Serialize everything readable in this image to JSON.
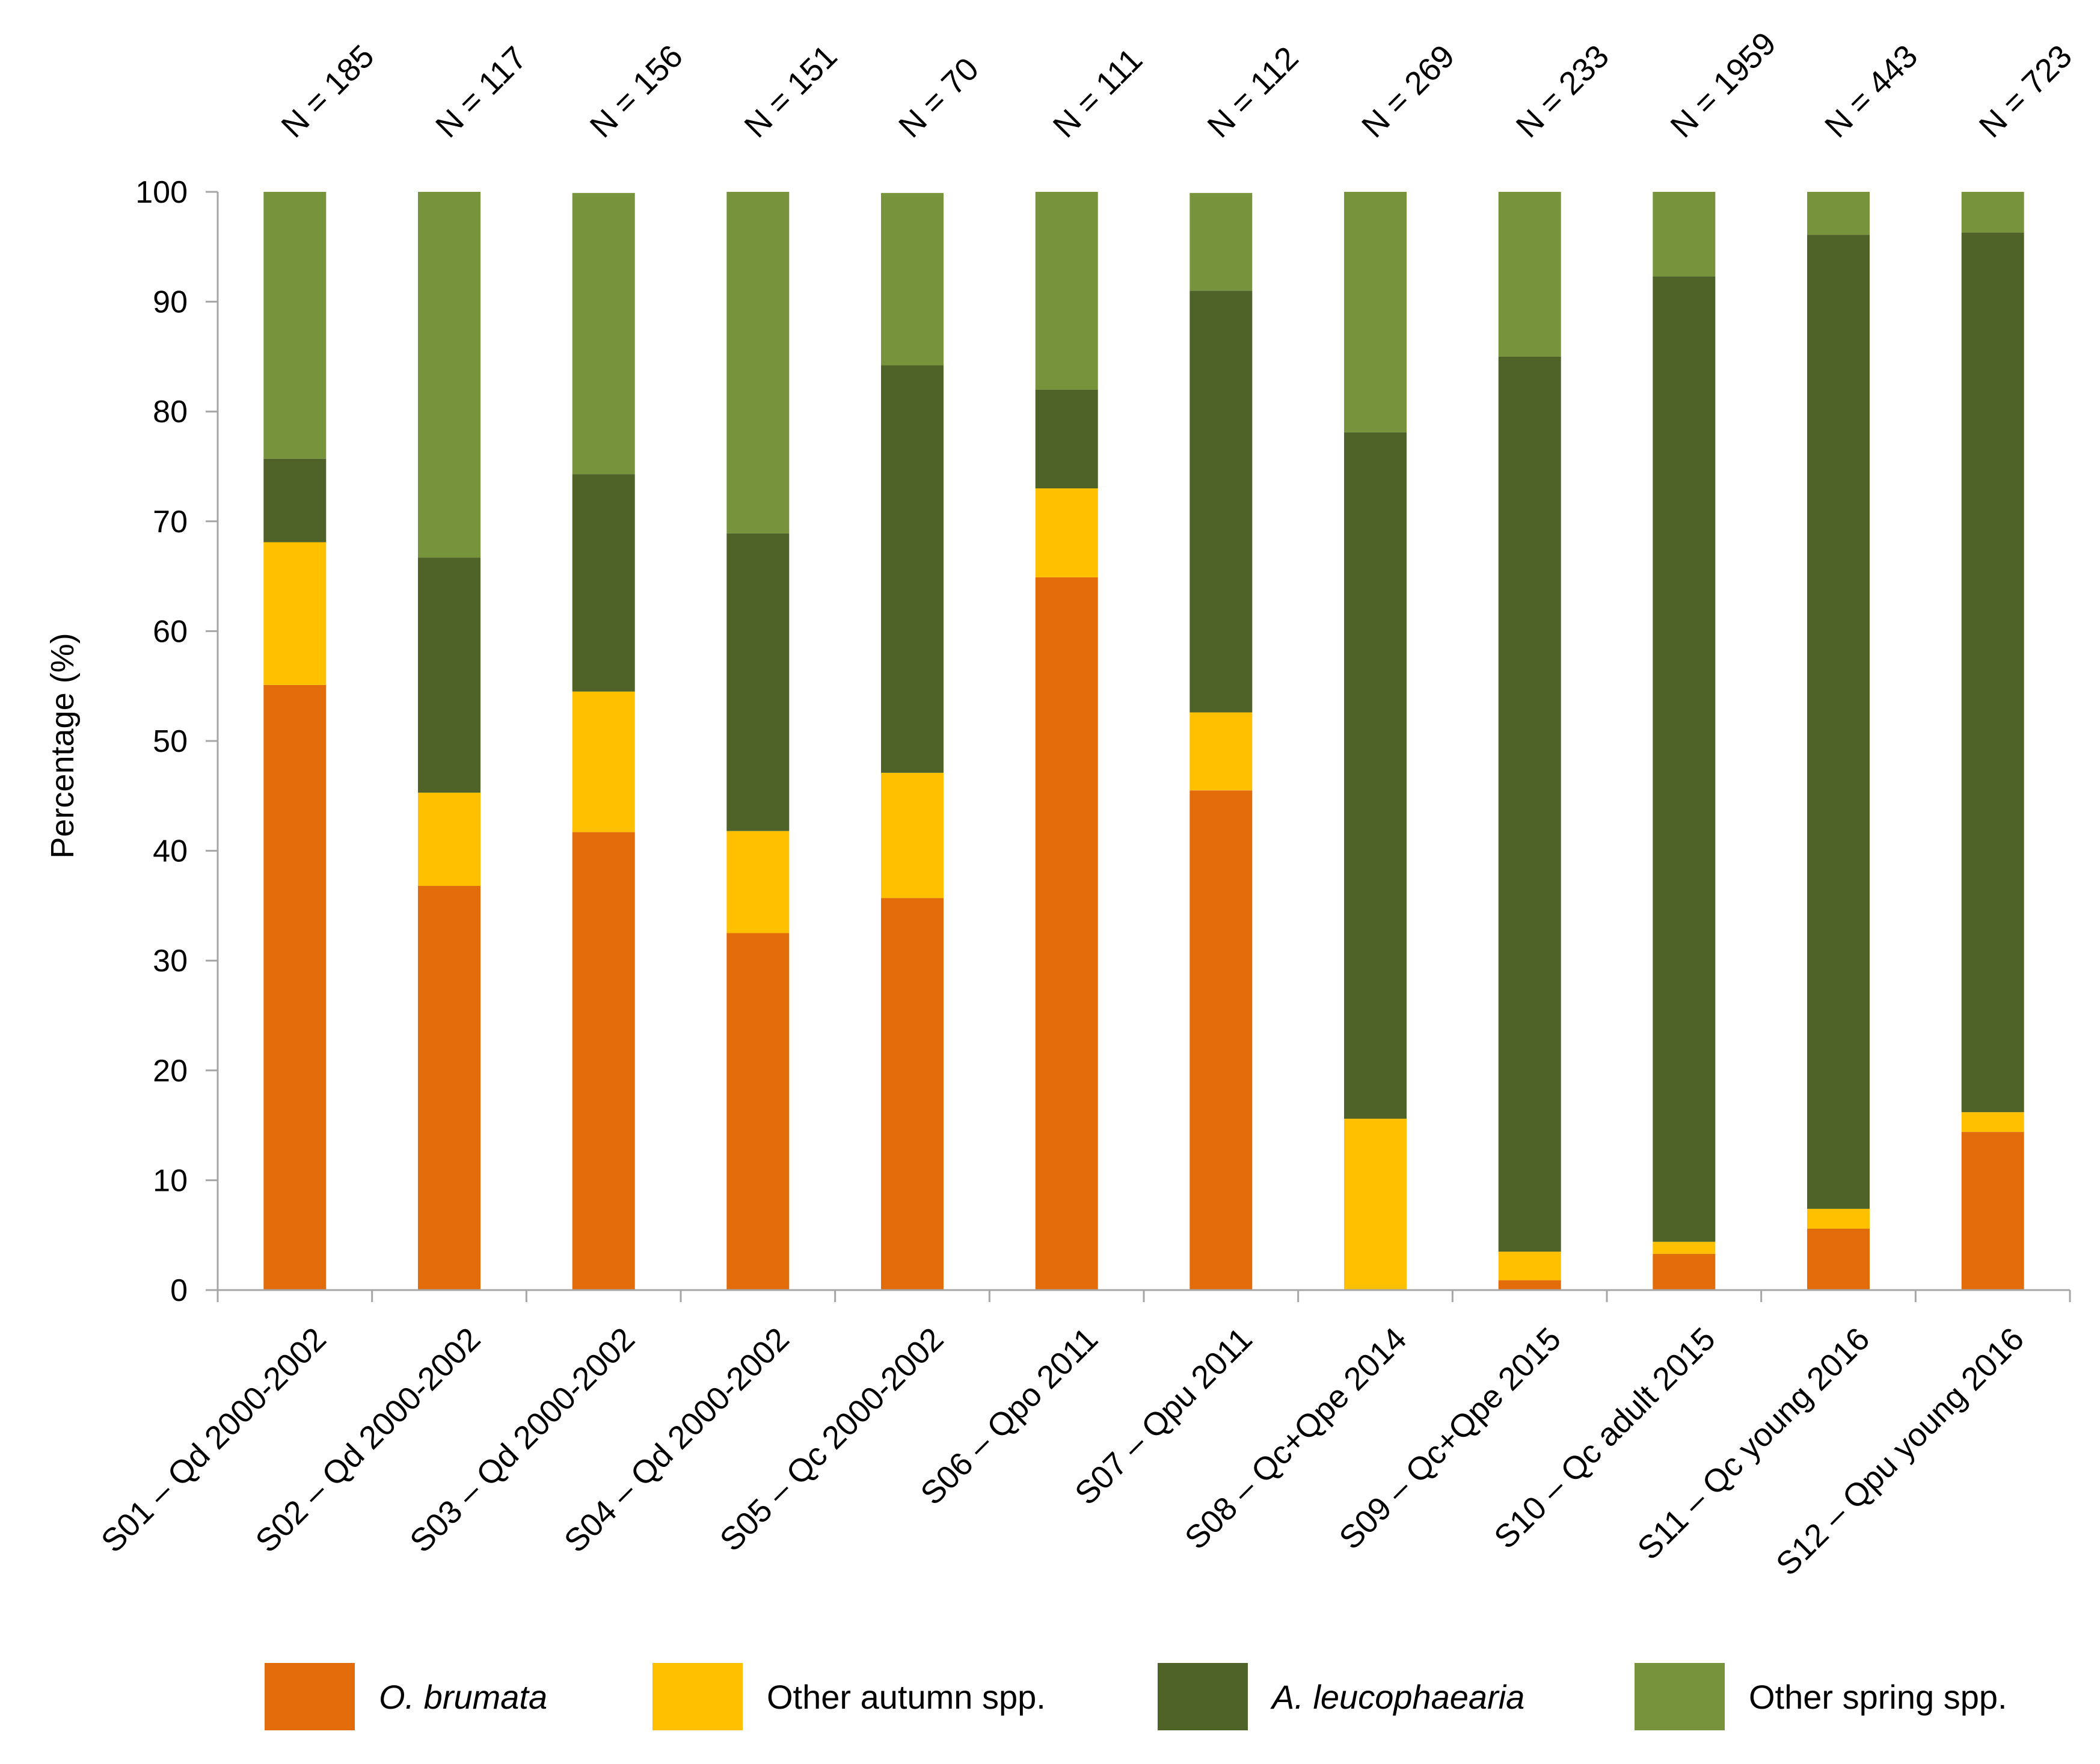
{
  "chart_data": {
    "type": "bar",
    "stacked": true,
    "title": "",
    "xlabel": "",
    "ylabel": "Percentage (%)",
    "ylim": [
      0,
      100
    ],
    "yticks": [
      0,
      10,
      20,
      30,
      40,
      50,
      60,
      70,
      80,
      90,
      100
    ],
    "grid": false,
    "legend_position": "bottom",
    "categories": [
      "S01 – Qd 2000-2002",
      "S02 – Qd 2000-2002",
      "S03 – Qd 2000-2002",
      "S04 – Qd 2000-2002",
      "S05 – Qc 2000-2002",
      "S06 – Qpo 2011",
      "S07 – Qpu 2011",
      "S08 – Qc+Qpe 2014",
      "S09 – Qc+Qpe 2015",
      "S10 – Qc adult 2015",
      "S11 – Qc young 2016",
      "S12 – Qpu young 2016"
    ],
    "n_labels": [
      "N = 185",
      "N = 117",
      "N = 156",
      "N = 151",
      "N = 70",
      "N = 111",
      "N = 112",
      "N = 269",
      "N = 233",
      "N = 1959",
      "N = 443",
      "N = 723"
    ],
    "series": [
      {
        "name": "O. brumata",
        "italic": true,
        "color": "#E36C0A",
        "values": [
          55.1,
          36.8,
          41.7,
          32.5,
          35.7,
          64.9,
          45.5,
          0.0,
          0.9,
          3.3,
          5.6,
          14.4
        ]
      },
      {
        "name": "Other autumn spp.",
        "italic": false,
        "color": "#FFC000",
        "values": [
          13.0,
          8.5,
          12.8,
          9.3,
          11.4,
          8.1,
          7.1,
          15.6,
          2.6,
          1.1,
          1.8,
          1.8
        ]
      },
      {
        "name": "A. leucophaearia",
        "italic": true,
        "color": "#4F6228",
        "values": [
          7.6,
          21.4,
          19.8,
          27.1,
          37.1,
          9.0,
          38.4,
          62.5,
          81.5,
          87.9,
          88.7,
          80.1
        ]
      },
      {
        "name": "Other spring spp.",
        "italic": false,
        "color": "#77933C",
        "values": [
          24.3,
          33.3,
          25.6,
          31.1,
          15.7,
          18.0,
          8.9,
          21.9,
          15.0,
          7.7,
          3.9,
          3.7
        ]
      }
    ]
  },
  "colors": {
    "axis": "#A6A6A6",
    "text": "#000000"
  }
}
